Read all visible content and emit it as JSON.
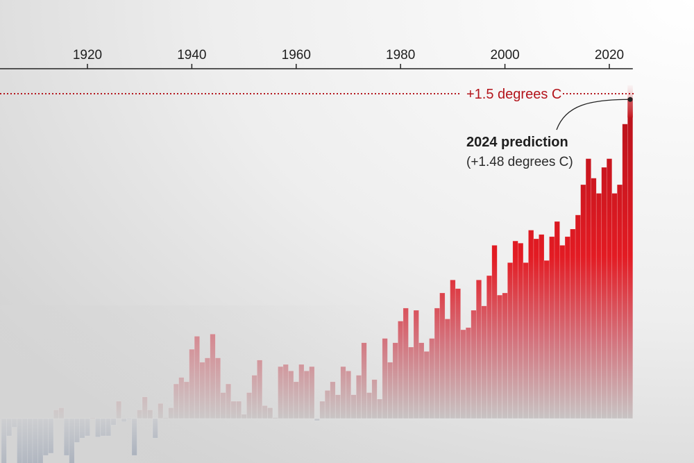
{
  "chart_data": {
    "type": "bar",
    "title": "",
    "xlabel": "",
    "ylabel": "",
    "x_ticks": [
      "1920",
      "1940",
      "1960",
      "1980",
      "2000",
      "2020"
    ],
    "x_range": [
      1904,
      2024
    ],
    "y_unit": "degrees C",
    "grid": false,
    "x": [
      1904,
      1905,
      1906,
      1907,
      1908,
      1909,
      1910,
      1911,
      1912,
      1913,
      1914,
      1915,
      1916,
      1917,
      1918,
      1919,
      1920,
      1921,
      1922,
      1923,
      1924,
      1925,
      1926,
      1927,
      1928,
      1929,
      1930,
      1931,
      1932,
      1933,
      1934,
      1935,
      1936,
      1937,
      1938,
      1939,
      1940,
      1941,
      1942,
      1943,
      1944,
      1945,
      1946,
      1947,
      1948,
      1949,
      1950,
      1951,
      1952,
      1953,
      1954,
      1955,
      1956,
      1957,
      1958,
      1959,
      1960,
      1961,
      1962,
      1963,
      1964,
      1965,
      1966,
      1967,
      1968,
      1969,
      1970,
      1971,
      1972,
      1973,
      1974,
      1975,
      1976,
      1977,
      1978,
      1979,
      1980,
      1981,
      1982,
      1983,
      1984,
      1985,
      1986,
      1987,
      1988,
      1989,
      1990,
      1991,
      1992,
      1993,
      1994,
      1995,
      1996,
      1997,
      1998,
      1999,
      2000,
      2001,
      2002,
      2003,
      2004,
      2005,
      2006,
      2007,
      2008,
      2009,
      2010,
      2011,
      2012,
      2013,
      2014,
      2015,
      2016,
      2017,
      2018,
      2019,
      2020,
      2021,
      2022,
      2023,
      2024
    ],
    "values": [
      -0.25,
      -0.08,
      -0.04,
      -0.22,
      -0.25,
      -0.25,
      -0.25,
      -0.25,
      -0.17,
      -0.16,
      0.04,
      0.05,
      -0.17,
      -0.22,
      -0.11,
      -0.09,
      -0.08,
      0.0,
      -0.085,
      -0.08,
      -0.08,
      -0.03,
      0.08,
      -0.015,
      -0.005,
      -0.17,
      0.04,
      0.1,
      0.04,
      -0.09,
      0.07,
      0.0,
      0.05,
      0.16,
      0.19,
      0.17,
      0.32,
      0.38,
      0.26,
      0.28,
      0.39,
      0.28,
      0.12,
      0.16,
      0.08,
      0.08,
      0.02,
      0.12,
      0.2,
      0.27,
      0.06,
      0.05,
      0.0,
      0.24,
      0.25,
      0.22,
      0.17,
      0.25,
      0.22,
      0.24,
      -0.01,
      0.08,
      0.13,
      0.17,
      0.11,
      0.24,
      0.22,
      0.11,
      0.2,
      0.35,
      0.12,
      0.18,
      0.09,
      0.37,
      0.26,
      0.35,
      0.45,
      0.51,
      0.33,
      0.5,
      0.35,
      0.31,
      0.37,
      0.51,
      0.58,
      0.46,
      0.64,
      0.6,
      0.41,
      0.42,
      0.5,
      0.64,
      0.52,
      0.66,
      0.8,
      0.57,
      0.58,
      0.72,
      0.82,
      0.81,
      0.72,
      0.87,
      0.83,
      0.85,
      0.73,
      0.84,
      0.91,
      0.8,
      0.84,
      0.875,
      0.94,
      1.08,
      1.2,
      1.11,
      1.04,
      1.16,
      1.2,
      1.04,
      1.08,
      1.36,
      1.48
    ],
    "ylim": [
      -0.2,
      1.55
    ],
    "threshold": {
      "value": 1.5,
      "label": "+1.5 degrees C"
    },
    "annotation": {
      "year": 2024,
      "value": 1.48,
      "title": "2024 prediction",
      "subtitle": "(+1.48 degrees C)"
    },
    "colors": {
      "warm": "#e31b23",
      "warm_dark": "#b5121b",
      "cool": "#8a96aa",
      "threshold": "#b3141b",
      "neutral": "#c6c3c3"
    }
  }
}
